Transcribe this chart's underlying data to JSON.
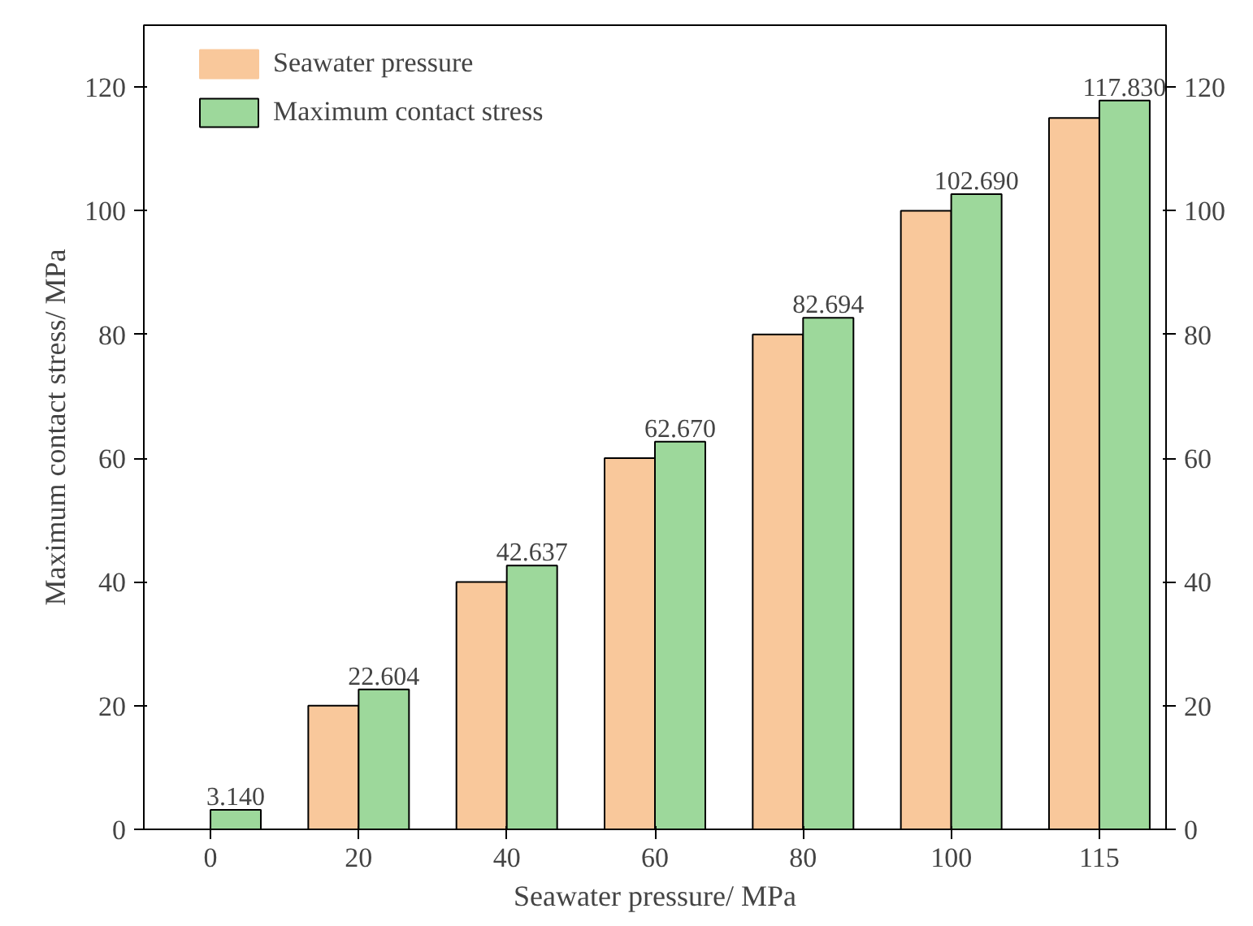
{
  "chart_data": {
    "type": "bar",
    "xlabel": "Seawater pressure/ MPa",
    "ylabel": "Maximum contact stress/ MPa",
    "categories": [
      "0",
      "20",
      "40",
      "60",
      "80",
      "100",
      "115"
    ],
    "series": [
      {
        "name": "Seawater pressure",
        "color": "#f9c89b",
        "values": [
          0,
          20,
          40,
          60,
          80,
          100,
          115
        ]
      },
      {
        "name": "Maximum contact stress",
        "color": "#9dd89b",
        "values": [
          3.14,
          22.604,
          42.637,
          62.67,
          82.694,
          102.69,
          117.83
        ],
        "value_labels": [
          "3.140",
          "22.604",
          "42.637",
          "62.670",
          "82.694",
          "102.690",
          "117.830"
        ]
      }
    ],
    "ylim": [
      0,
      130
    ],
    "yticks": [
      0,
      20,
      40,
      60,
      80,
      100,
      120
    ],
    "y2lim": [
      0,
      130
    ],
    "y2ticks": [
      0,
      20,
      40,
      60,
      80,
      100,
      120
    ],
    "grid": false,
    "legend": "top left"
  }
}
